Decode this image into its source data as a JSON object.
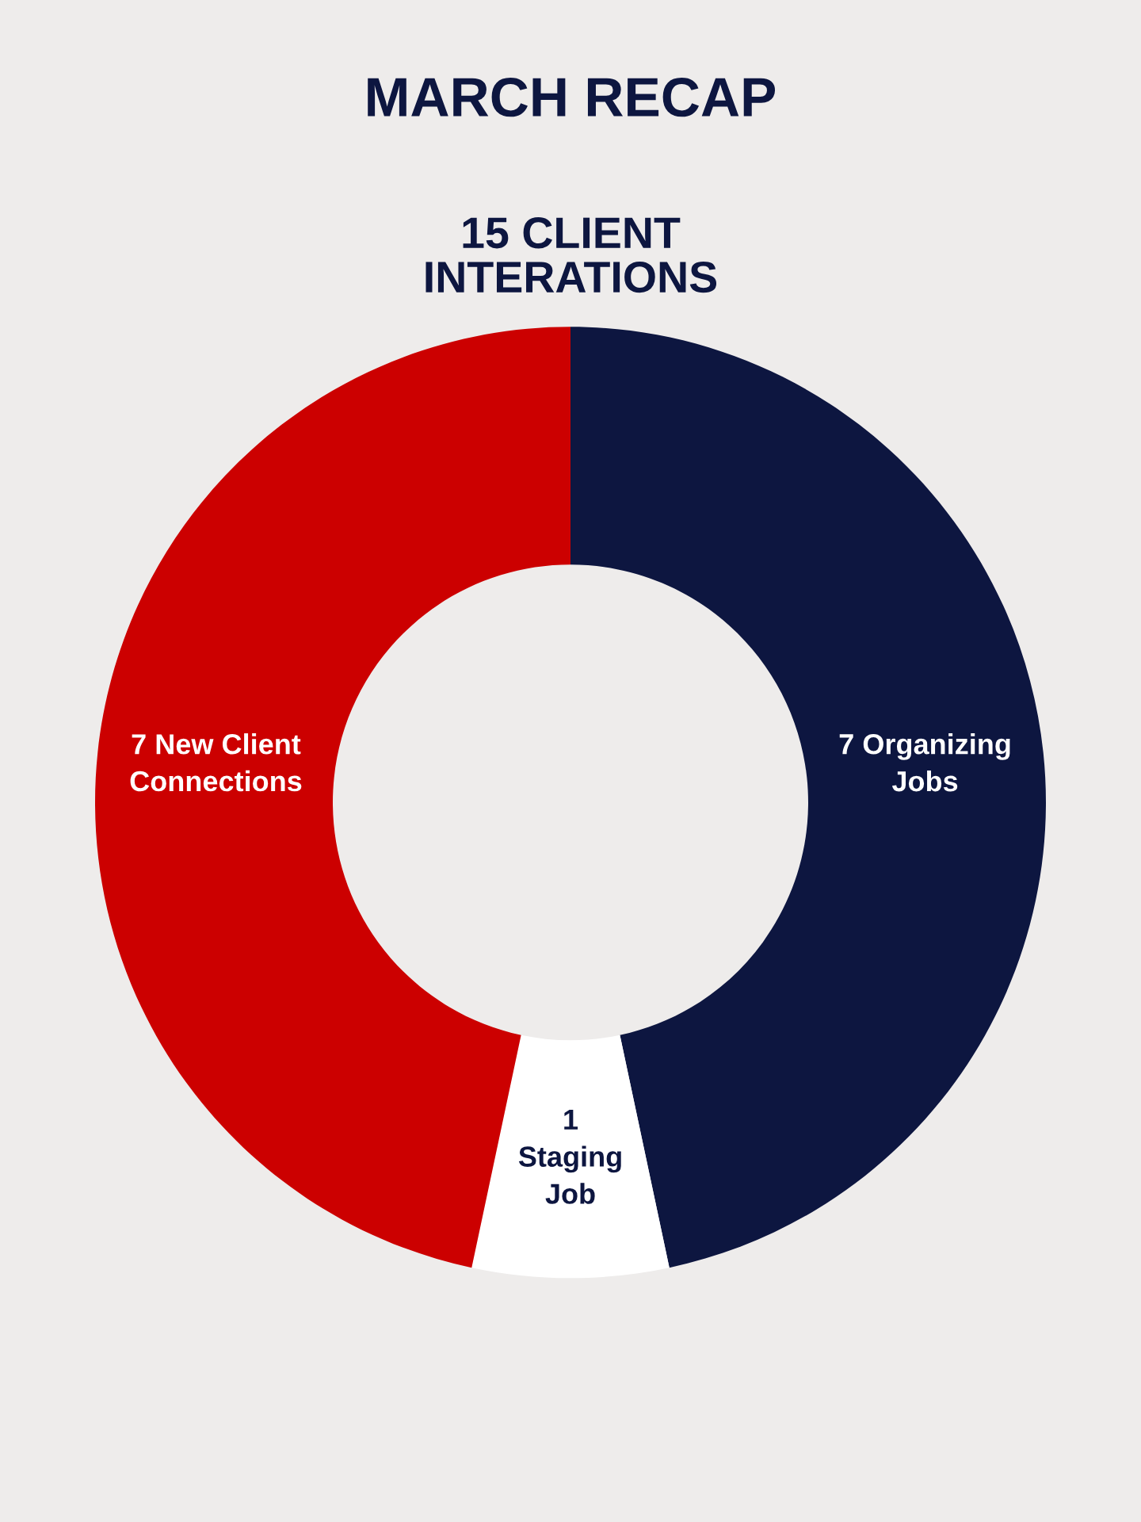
{
  "chart_data": {
    "type": "donut",
    "title": "MARCH RECAP",
    "subtitle": "15 CLIENT\nINTERATIONS",
    "categories": [
      "7 Organizing\nJobs",
      "1\nStaging\nJob",
      "7 New Client\nConnections"
    ],
    "values": [
      7,
      1,
      7
    ],
    "colors": [
      "#0d1640",
      "#ffffff",
      "#cc0000"
    ],
    "legend": false
  }
}
